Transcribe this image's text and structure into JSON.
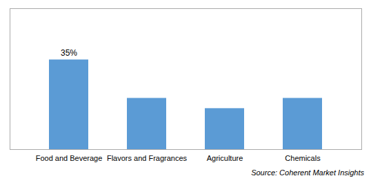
{
  "chart_data": {
    "type": "bar",
    "categories": [
      "Food and Beverage",
      "Flavors and Fragrances",
      "Agriculture",
      "Chemicals"
    ],
    "values": [
      35,
      20,
      16,
      20
    ],
    "color": "#5B9BD5",
    "ylim": [
      0,
      55
    ],
    "yticks": [],
    "grid": false,
    "tick_labels": "x",
    "annotations": [
      {
        "text": "35%",
        "category": "Food and Beverage",
        "value": 35
      }
    ],
    "source": "Source: Coherent Market Insights"
  }
}
